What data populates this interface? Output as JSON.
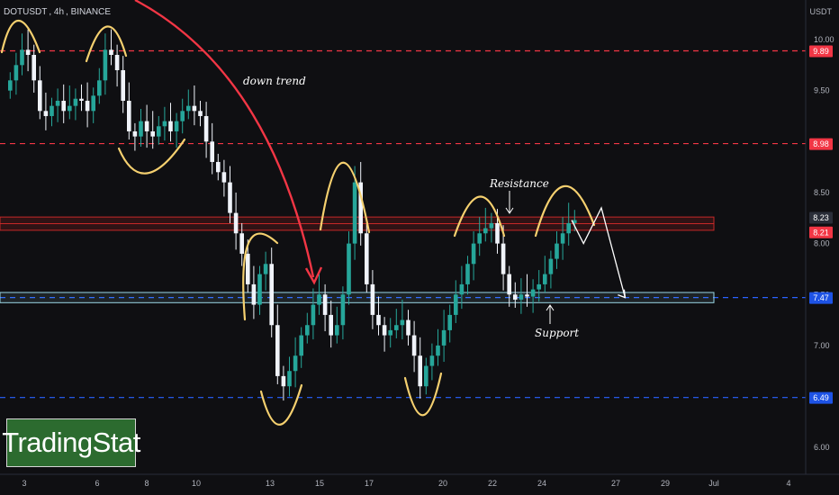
{
  "header": {
    "symbol": "DOTUSDT",
    "interval": "4h",
    "exchange": "BINANCE",
    "currency": "USDT"
  },
  "brand": {
    "text": "TradingStat"
  },
  "annotations": {
    "down_trend": "down trend",
    "resistance": "Resistance",
    "support": "Support"
  },
  "colors": {
    "background": "#0f0f12",
    "candle_up": "#26a69a",
    "candle_down": "#f0f3fa",
    "red_level": "#f23645",
    "blue_level": "#2962ff",
    "resistance_zone": "#c62828",
    "support_zone": "#9ad7e6",
    "wave": "#f5d06f",
    "trend_arrow": "#f23645"
  },
  "chart_data": {
    "type": "candlestick",
    "y_axis": {
      "tick_labels": [
        "10.00",
        "9.50",
        "9.00",
        "8.50",
        "8.00",
        "7.50",
        "7.00",
        "6.50",
        "6.00"
      ],
      "ticks": [
        10.0,
        9.5,
        9.0,
        8.5,
        8.0,
        7.5,
        7.0,
        6.5,
        6.0
      ]
    },
    "x_axis": {
      "tick_labels": [
        "3",
        "6",
        "8",
        "10",
        "13",
        "15",
        "17",
        "20",
        "22",
        "24",
        "27",
        "29",
        "Jul",
        "4"
      ]
    },
    "price_labels": [
      {
        "value": "9.89",
        "style": "red"
      },
      {
        "value": "8.98",
        "style": "red"
      },
      {
        "value": "8.23",
        "style": "gray"
      },
      {
        "value": "8.21",
        "style": "red"
      },
      {
        "value": "7.47",
        "style": "blue"
      },
      {
        "value": "6.49",
        "style": "blue"
      }
    ],
    "levels": [
      {
        "price": 9.89,
        "kind": "red-dashed"
      },
      {
        "price": 8.98,
        "kind": "red-dashed"
      },
      {
        "price": 7.47,
        "kind": "blue-dashed"
      },
      {
        "price": 6.49,
        "kind": "blue-dashed"
      }
    ],
    "resistance_zone": [
      8.13,
      8.26
    ],
    "support_zone": [
      7.42,
      7.52
    ],
    "closes": [
      9.6,
      9.75,
      9.9,
      9.85,
      9.6,
      9.3,
      9.25,
      9.35,
      9.4,
      9.3,
      9.35,
      9.42,
      9.4,
      9.3,
      9.45,
      9.6,
      9.9,
      9.85,
      9.7,
      9.4,
      9.1,
      9.05,
      9.2,
      9.1,
      9.05,
      9.15,
      9.2,
      9.1,
      9.2,
      9.3,
      9.35,
      9.3,
      9.25,
      9.0,
      8.8,
      8.7,
      8.6,
      8.3,
      8.1,
      7.9,
      7.6,
      7.4,
      7.7,
      7.8,
      7.2,
      6.7,
      6.6,
      6.75,
      6.9,
      7.1,
      7.2,
      7.4,
      7.5,
      7.3,
      7.1,
      7.2,
      7.5,
      8.0,
      8.6,
      8.1,
      7.6,
      7.3,
      7.2,
      7.1,
      7.15,
      7.2,
      7.25,
      7.1,
      6.9,
      6.6,
      6.8,
      6.9,
      7.0,
      7.15,
      7.3,
      7.5,
      7.6,
      7.8,
      8.0,
      8.1,
      8.15,
      8.2,
      8.0,
      7.7,
      7.5,
      7.45,
      7.5,
      7.48,
      7.55,
      7.6,
      7.7,
      7.85,
      8.0,
      8.1,
      8.2,
      8.23
    ],
    "projection": [
      {
        "bar": 95,
        "price": 8.23
      },
      {
        "bar": 97,
        "price": 8.0
      },
      {
        "bar": 100,
        "price": 8.35
      },
      {
        "bar": 104,
        "price": 7.47
      }
    ]
  }
}
